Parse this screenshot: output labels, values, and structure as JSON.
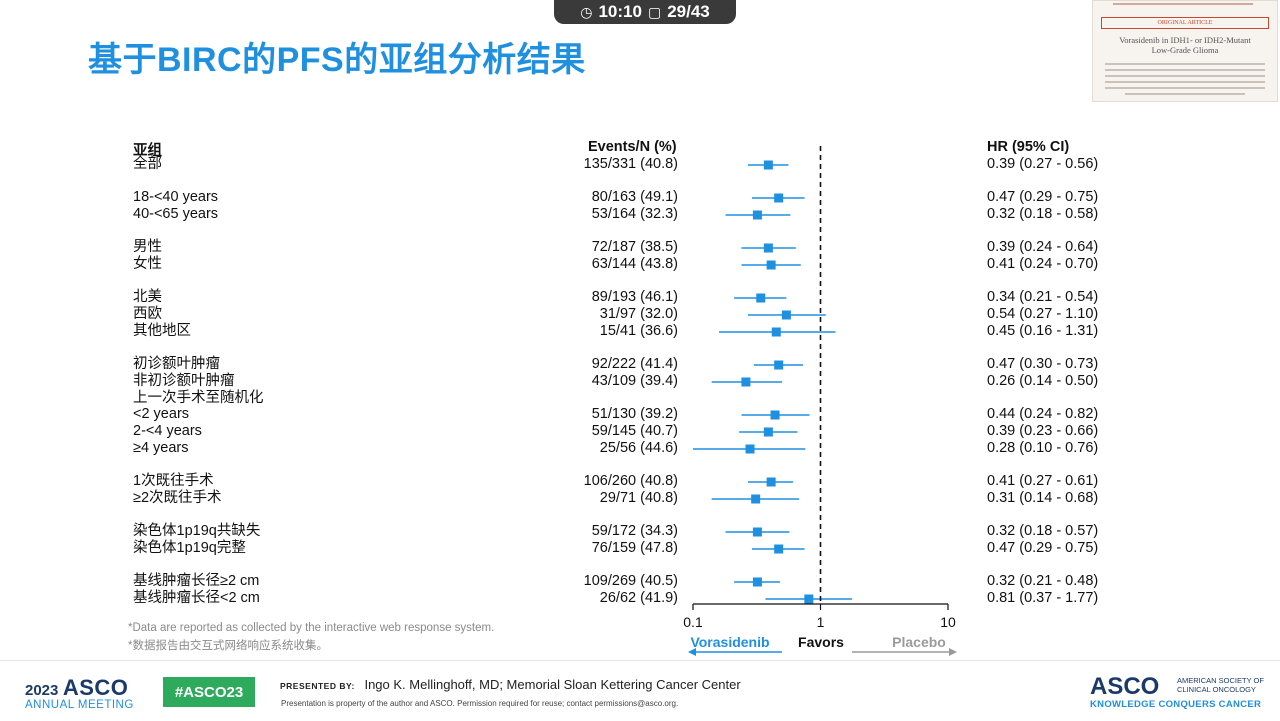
{
  "status_bar": {
    "time": "10:10",
    "page": "29/43"
  },
  "slide_title": "基于BIRC的PFS的亚组分析结果",
  "thumbnail": {
    "tag": "ORIGINAL ARTICLE",
    "title_lines": [
      "Vorasidenib in IDH1- or IDH2-Mutant",
      "Low-Grade Glioma"
    ]
  },
  "headers": {
    "subgroup": "亚组",
    "events": "Events/N (%)",
    "hr": "HR (95% CI)"
  },
  "chart_data": {
    "type": "forest",
    "x_scale": "log",
    "x_ticks": [
      "0.1",
      "1",
      "10"
    ],
    "xlim": [
      0.1,
      10
    ],
    "reference_line": 1,
    "favors_left": "Vorasidenib",
    "favors_center": "Favors",
    "favors_right": "Placebo",
    "rows": [
      {
        "label": "全部",
        "events": "135/331 (40.8)",
        "hr_text": "0.39 (0.27 - 0.56)",
        "hr": 0.39,
        "lo": 0.27,
        "hi": 0.56
      },
      {
        "label": "18-<40 years",
        "events": "80/163 (49.1)",
        "hr_text": "0.47 (0.29 - 0.75)",
        "hr": 0.47,
        "lo": 0.29,
        "hi": 0.75
      },
      {
        "label": "40-<65 years",
        "events": "53/164 (32.3)",
        "hr_text": "0.32 (0.18 - 0.58)",
        "hr": 0.32,
        "lo": 0.18,
        "hi": 0.58
      },
      {
        "label": "男性",
        "events": "72/187 (38.5)",
        "hr_text": "0.39 (0.24 - 0.64)",
        "hr": 0.39,
        "lo": 0.24,
        "hi": 0.64
      },
      {
        "label": "女性",
        "events": "63/144 (43.8)",
        "hr_text": "0.41 (0.24 - 0.70)",
        "hr": 0.41,
        "lo": 0.24,
        "hi": 0.7
      },
      {
        "label": "北美",
        "events": "89/193 (46.1)",
        "hr_text": "0.34 (0.21 - 0.54)",
        "hr": 0.34,
        "lo": 0.21,
        "hi": 0.54
      },
      {
        "label": "西欧",
        "events": "31/97 (32.0)",
        "hr_text": "0.54 (0.27 - 1.10)",
        "hr": 0.54,
        "lo": 0.27,
        "hi": 1.1
      },
      {
        "label": "其他地区",
        "events": "15/41 (36.6)",
        "hr_text": "0.45 (0.16 - 1.31)",
        "hr": 0.45,
        "lo": 0.16,
        "hi": 1.31
      },
      {
        "label": "初诊额叶肿瘤",
        "events": "92/222 (41.4)",
        "hr_text": "0.47 (0.30 - 0.73)",
        "hr": 0.47,
        "lo": 0.3,
        "hi": 0.73
      },
      {
        "label": "非初诊额叶肿瘤",
        "events": "43/109 (39.4)",
        "hr_text": "0.26 (0.14 - 0.50)",
        "hr": 0.26,
        "lo": 0.14,
        "hi": 0.5
      },
      {
        "label": "上一次手术至随机化",
        "events": "",
        "hr_text": "",
        "hr": null,
        "lo": null,
        "hi": null
      },
      {
        "label": "<2 years",
        "events": "51/130 (39.2)",
        "hr_text": "0.44 (0.24 - 0.82)",
        "hr": 0.44,
        "lo": 0.24,
        "hi": 0.82
      },
      {
        "label": "2-<4 years",
        "events": "59/145 (40.7)",
        "hr_text": "0.39 (0.23 - 0.66)",
        "hr": 0.39,
        "lo": 0.23,
        "hi": 0.66
      },
      {
        "label": "≥4 years",
        "events": "25/56 (44.6)",
        "hr_text": "0.28 (0.10 - 0.76)",
        "hr": 0.28,
        "lo": 0.1,
        "hi": 0.76
      },
      {
        "label": "1次既往手术",
        "events": "106/260 (40.8)",
        "hr_text": "0.41 (0.27 - 0.61)",
        "hr": 0.41,
        "lo": 0.27,
        "hi": 0.61
      },
      {
        "label": "≥2次既往手术",
        "events": "29/71 (40.8)",
        "hr_text": "0.31 (0.14 - 0.68)",
        "hr": 0.31,
        "lo": 0.14,
        "hi": 0.68
      },
      {
        "label": "染色体1p19q共缺失",
        "events": "59/172 (34.3)",
        "hr_text": "0.32 (0.18 - 0.57)",
        "hr": 0.32,
        "lo": 0.18,
        "hi": 0.57
      },
      {
        "label": "染色体1p19q完整",
        "events": "76/159 (47.8)",
        "hr_text": "0.47 (0.29 - 0.75)",
        "hr": 0.47,
        "lo": 0.29,
        "hi": 0.75
      },
      {
        "label": "基线肿瘤长径≥2 cm",
        "events": "109/269 (40.5)",
        "hr_text": "0.32 (0.21 - 0.48)",
        "hr": 0.32,
        "lo": 0.21,
        "hi": 0.48
      },
      {
        "label": "基线肿瘤长径<2 cm",
        "events": "26/62 (41.9)",
        "hr_text": "0.81 (0.37 - 1.77)",
        "hr": 0.81,
        "lo": 0.37,
        "hi": 1.77
      }
    ],
    "colors": {
      "marker": "#1f8fe0",
      "reference": "#111111"
    }
  },
  "footnotes": [
    "*Data are reported as collected by the interactive web response system.",
    "*数据报告由交互式网络响应系统收集。"
  ],
  "footer": {
    "year": "2023",
    "asco": "ASCO",
    "annual_meeting": "ANNUAL MEETING",
    "hashtag": "#ASCO23",
    "presented_by_label": "PRESENTED BY:",
    "presenter": "Ingo K. Mellinghoff, MD; Memorial Sloan Kettering Cancer Center",
    "property_note": "Presentation is property of the author and ASCO. Permission required for reuse; contact permissions@asco.org.",
    "society": "AMERICAN SOCIETY OF CLINICAL ONCOLOGY",
    "tagline": "KNOWLEDGE CONQUERS CANCER"
  }
}
